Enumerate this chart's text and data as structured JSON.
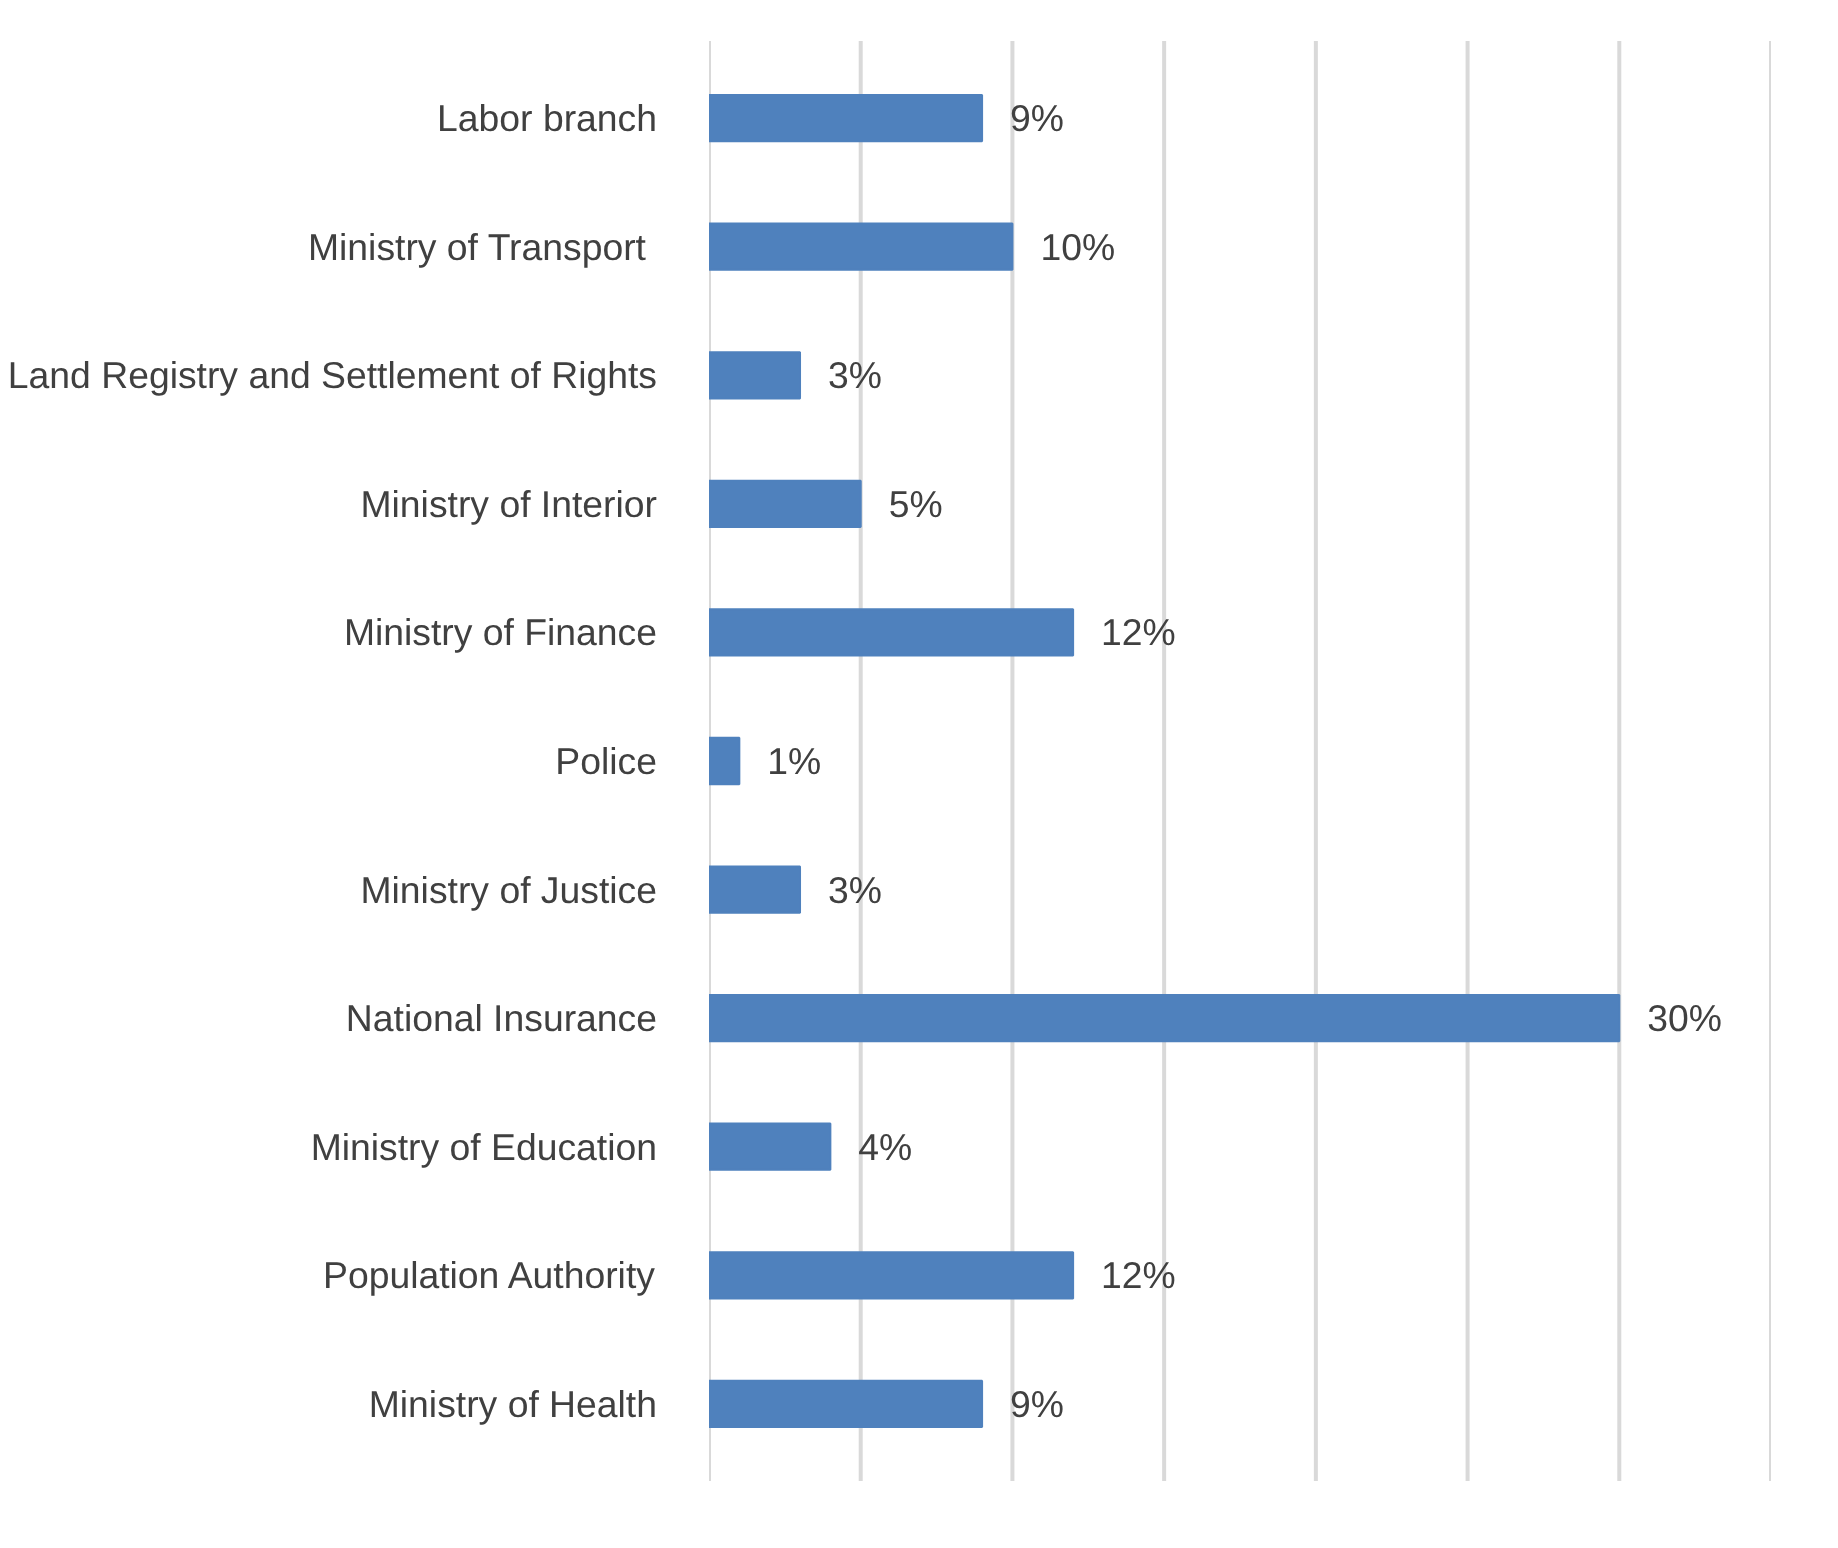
{
  "chart_data": {
    "type": "bar",
    "orientation": "horizontal",
    "categories": [
      "Labor branch",
      "Ministry of Transport ",
      "Land Registry and Settlement of Rights",
      "Ministry of Interior",
      "Ministry of Finance",
      "Police",
      "Ministry of Justice",
      "National Insurance",
      "Ministry of Education",
      "Population Authority",
      "Ministry of Health"
    ],
    "values": [
      9,
      10,
      3,
      5,
      12,
      1,
      3,
      30,
      4,
      12,
      9
    ],
    "value_labels": [
      "9%",
      "10%",
      "3%",
      "5%",
      "12%",
      "1%",
      "3%",
      "30%",
      "4%",
      "12%",
      "9%"
    ],
    "color": "#4f81bd",
    "xlim": [
      0,
      35
    ],
    "xticks": [
      {
        "value": 0,
        "label": null
      },
      {
        "value": 5,
        "label": null
      },
      {
        "value": 10,
        "label": null
      },
      {
        "value": 15,
        "label": null
      },
      {
        "value": 20,
        "label": null
      },
      {
        "value": 25,
        "label": null
      },
      {
        "value": 30,
        "label": null
      },
      {
        "value": 35,
        "label": null
      }
    ],
    "tick_labels": "y",
    "grid": "x"
  }
}
